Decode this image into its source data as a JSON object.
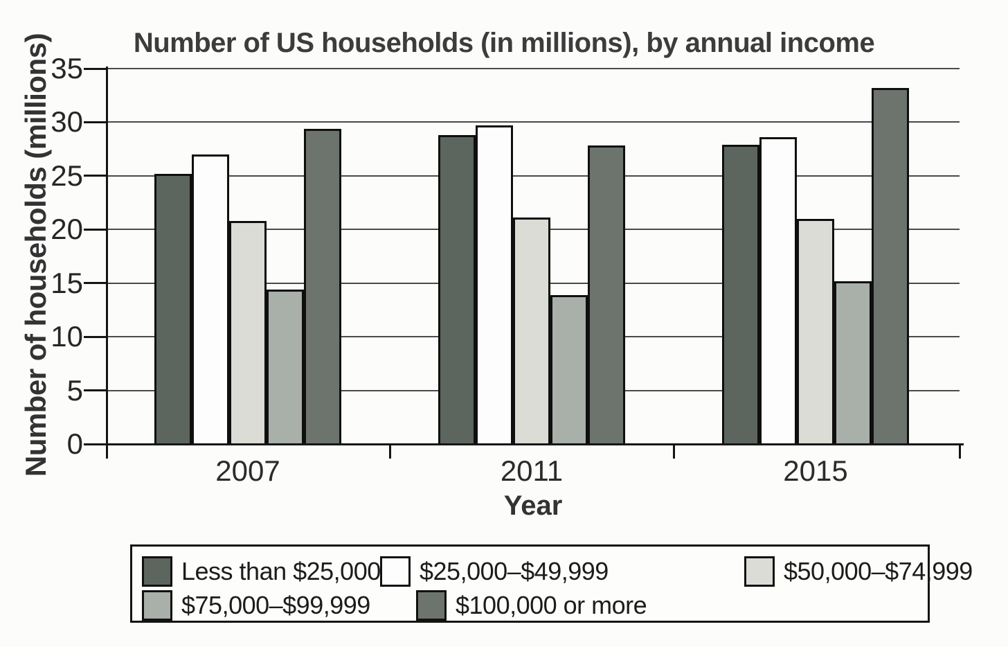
{
  "chart_data": {
    "type": "bar",
    "title": "Number of US households (in millions), by annual income",
    "xlabel": "Year",
    "ylabel": "Number of households (millions)",
    "categories": [
      "2007",
      "2011",
      "2015"
    ],
    "series": [
      {
        "name": "Less than $25,000",
        "color": "#5d655f",
        "values": [
          25.2,
          28.8,
          27.9
        ]
      },
      {
        "name": "$25,000–$49,999",
        "color": "#fdfdfd",
        "values": [
          27.0,
          29.7,
          28.6
        ]
      },
      {
        "name": "$50,000–$74,999",
        "color": "#dcdcd6",
        "values": [
          20.8,
          21.1,
          21.0
        ]
      },
      {
        "name": "$75,000–$99,999",
        "color": "#a9afa9",
        "values": [
          14.4,
          13.9,
          15.2
        ]
      },
      {
        "name": "$100,000 or more",
        "color": "#6d746e",
        "values": [
          29.4,
          27.8,
          33.2
        ]
      }
    ],
    "ylim": [
      0,
      35
    ],
    "yticks": [
      0,
      5,
      10,
      15,
      20,
      25,
      30,
      35
    ],
    "grid": true,
    "legend_position": "bottom",
    "legend_rows": [
      [
        0,
        1,
        2
      ],
      [
        3,
        4
      ]
    ],
    "bar_border_color": "#0f0f0f",
    "accent_text_color": "#3c3c3c"
  }
}
